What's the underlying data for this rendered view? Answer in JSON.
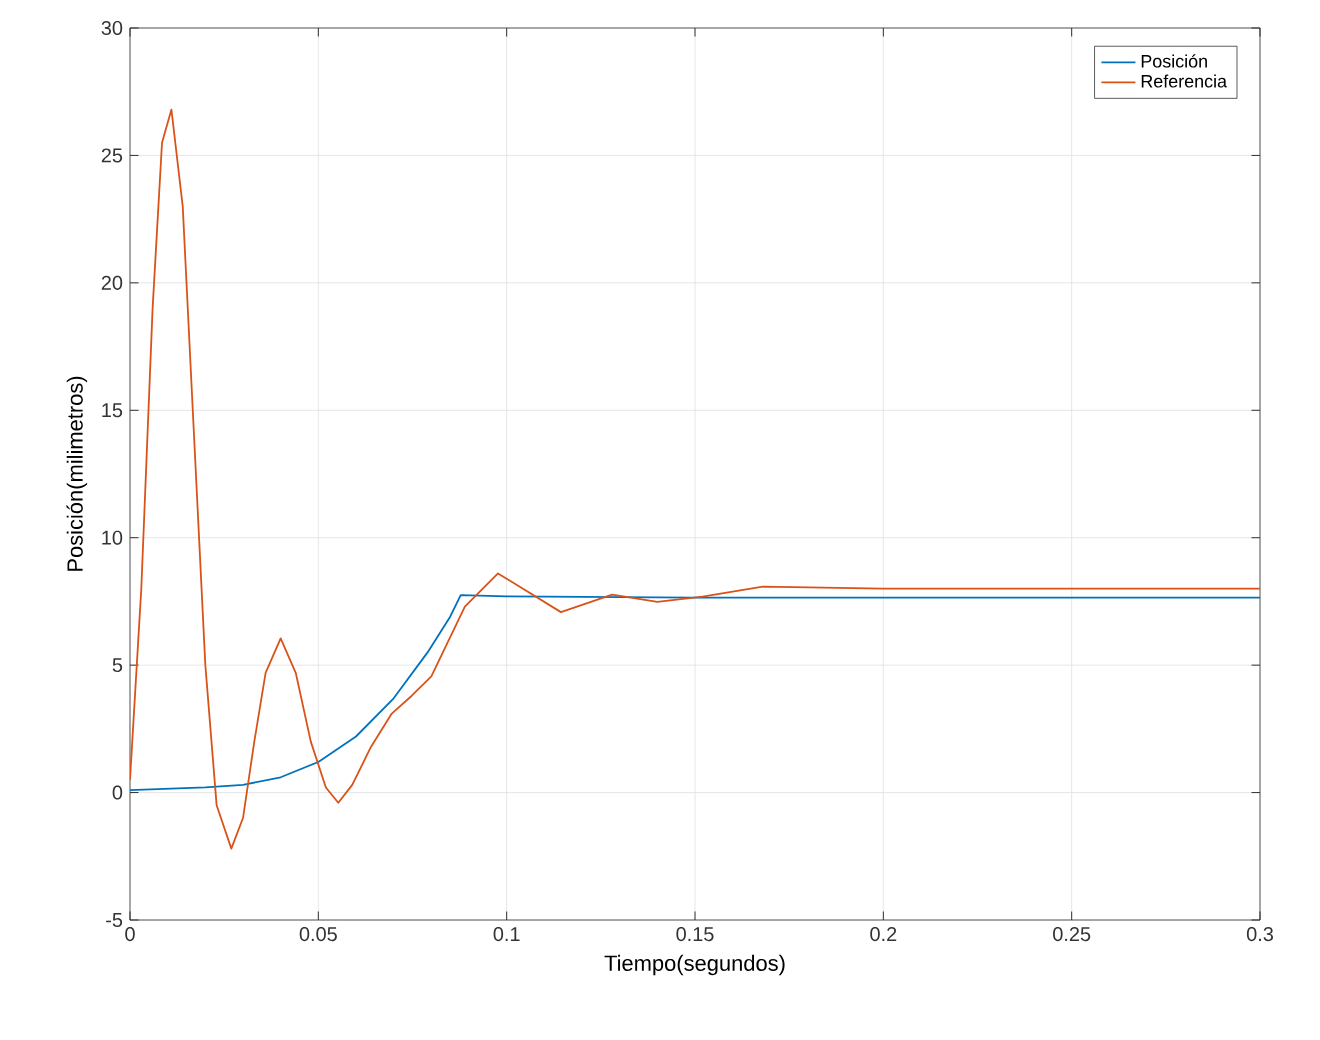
{
  "chart_data": {
    "type": "line",
    "xlabel": "Tiempo(segundos)",
    "ylabel": "Posición(milimetros)",
    "xlim": [
      0,
      0.3
    ],
    "ylim": [
      -5,
      30
    ],
    "xticks": [
      0,
      0.05,
      0.1,
      0.15,
      0.2,
      0.25,
      0.3
    ],
    "yticks": [
      -5,
      0,
      5,
      10,
      15,
      20,
      25,
      30
    ],
    "grid": true,
    "legend": "top right",
    "series": [
      {
        "name": "Posición",
        "color": "#0072bd",
        "x": [
          0,
          0.02,
          0.03,
          0.04,
          0.05,
          0.06,
          0.07,
          0.079,
          0.085,
          0.0878,
          0.1,
          0.15,
          0.2,
          0.3
        ],
        "values": [
          0.1,
          0.2,
          0.3,
          0.6,
          1.2,
          2.2,
          3.7,
          5.5,
          6.9,
          7.75,
          7.7,
          7.65,
          7.65,
          7.65
        ]
      },
      {
        "name": "Referencia",
        "color": "#d95319",
        "x": [
          0,
          0.003,
          0.006,
          0.0085,
          0.011,
          0.014,
          0.017,
          0.02,
          0.023,
          0.0269,
          0.03,
          0.033,
          0.036,
          0.04,
          0.044,
          0.048,
          0.052,
          0.0553,
          0.059,
          0.064,
          0.0695,
          0.0748,
          0.08,
          0.0889,
          0.0977,
          0.1144,
          0.128,
          0.14,
          0.152,
          0.168,
          0.2,
          0.3
        ],
        "values": [
          0.5,
          8,
          19,
          25.5,
          26.8,
          23,
          14,
          5,
          -0.5,
          -2.2,
          -1,
          2,
          4.7,
          6.05,
          4.7,
          2,
          0.2,
          -0.4,
          0.3,
          1.8,
          3.1,
          3.8,
          4.56,
          7.3,
          8.6,
          7.08,
          7.77,
          7.48,
          7.69,
          8.08,
          8.0,
          8.0
        ]
      }
    ]
  }
}
